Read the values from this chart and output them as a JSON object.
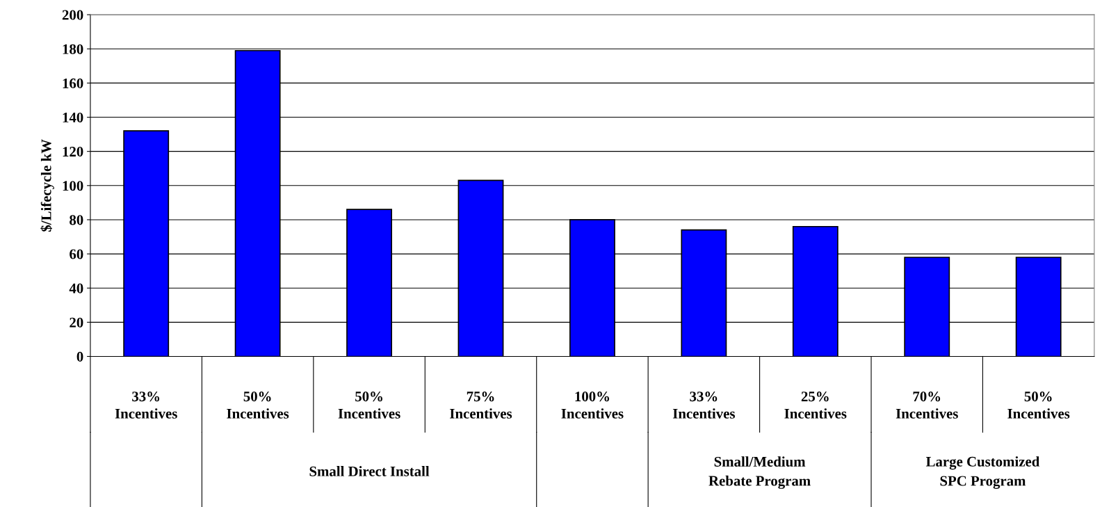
{
  "chart_data": {
    "type": "bar",
    "ylabel": "$/Lifecycle kW",
    "categories": [
      "33%\nIncentives",
      "50%\nIncentives",
      "50%\nIncentives",
      "75%\nIncentives",
      "100%\nIncentives",
      "33%\nIncentives",
      "25%\nIncentives",
      "70%\nIncentives",
      "50%\nIncentives"
    ],
    "values": [
      132,
      179,
      86,
      103,
      80,
      74,
      76,
      58,
      58
    ],
    "color": "#0000ff",
    "ylim": [
      0,
      200
    ],
    "yticks": [
      0,
      20,
      40,
      60,
      80,
      100,
      120,
      140,
      160,
      180,
      200
    ],
    "grid": "y",
    "annotations": [
      "Small Direct Install",
      "Small/Medium\nRebate Program",
      "Large Customized\nSPC Program"
    ]
  }
}
